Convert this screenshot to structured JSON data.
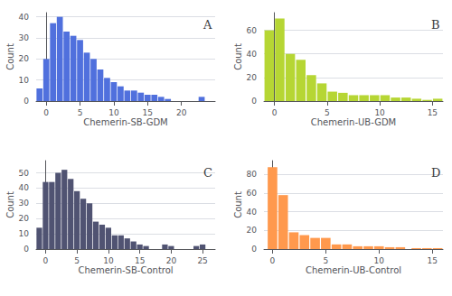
{
  "chart_data": [
    {
      "type": "bar",
      "title": "A",
      "xlabel": "Chemerin-SB-GDM",
      "ylabel": "Count",
      "x": [
        -1.0,
        0.0,
        1.0,
        2.0,
        3.0,
        4.0,
        5.0,
        6.0,
        7.0,
        8.0,
        9.0,
        10.0,
        11.0,
        12.0,
        13.0,
        14.0,
        15.0,
        16.0,
        17.0,
        18.0,
        23.0
      ],
      "values": [
        6,
        20,
        37,
        40,
        33,
        31,
        29,
        23,
        20,
        15,
        11,
        9,
        7,
        5,
        5,
        4,
        3,
        3,
        2,
        1,
        2
      ],
      "xlim": [
        -1.5,
        25
      ],
      "ylim": [
        0,
        42
      ],
      "xticks": [
        0,
        5,
        10,
        15,
        20
      ],
      "yticks": [
        0,
        10,
        20,
        30,
        40
      ],
      "grid": true
    },
    {
      "type": "bar",
      "title": "B",
      "xlabel": "Chemerin-UB-GDM",
      "ylabel": "Count",
      "x": [
        -0.5,
        0.5,
        1.5,
        2.5,
        3.5,
        4.5,
        5.5,
        6.5,
        7.5,
        8.5,
        9.5,
        10.5,
        11.5,
        12.5,
        13.5,
        14.5,
        15.5
      ],
      "values": [
        60,
        70,
        40,
        35,
        22,
        15,
        8,
        7,
        5,
        5,
        5,
        5,
        3,
        3,
        2,
        1,
        2
      ],
      "xlim": [
        -1.0,
        16
      ],
      "ylim": [
        0,
        75
      ],
      "xticks": [
        0,
        5,
        10,
        15
      ],
      "yticks": [
        0,
        20,
        40,
        60
      ],
      "grid": true
    },
    {
      "type": "bar",
      "title": "C",
      "xlabel": "Chemerin-SB-Control",
      "ylabel": "Count",
      "x": [
        -1.0,
        0.0,
        1.0,
        2.0,
        3.0,
        4.0,
        5.0,
        6.0,
        7.0,
        8.0,
        9.0,
        10.0,
        11.0,
        12.0,
        13.0,
        14.0,
        15.0,
        16.0,
        19.0,
        20.0,
        24.0,
        25.0
      ],
      "values": [
        14,
        44,
        44,
        50,
        52,
        46,
        38,
        33,
        30,
        18,
        16,
        14,
        9,
        9,
        7,
        5,
        3,
        2,
        3,
        2,
        2,
        3
      ],
      "xlim": [
        -1.5,
        27
      ],
      "ylim": [
        0,
        58
      ],
      "xticks": [
        0,
        5,
        10,
        15,
        20,
        25
      ],
      "yticks": [
        0,
        10,
        20,
        30,
        40,
        50
      ],
      "grid": true
    },
    {
      "type": "bar",
      "title": "D",
      "xlabel": "Chemerin-UB-Control",
      "ylabel": "Count",
      "x": [
        0.0,
        1.0,
        2.0,
        3.0,
        4.0,
        5.0,
        6.0,
        7.0,
        8.0,
        9.0,
        10.0,
        11.0,
        12.0,
        13.5,
        14.5,
        15.5
      ],
      "values": [
        88,
        58,
        18,
        15,
        12,
        12,
        5,
        5,
        3,
        3,
        3,
        2,
        2,
        1,
        1,
        1
      ],
      "xlim": [
        -0.8,
        16
      ],
      "ylim": [
        0,
        95
      ],
      "xticks": [
        0,
        5,
        10,
        15
      ],
      "yticks": [
        0,
        20,
        40,
        60,
        80
      ],
      "grid": true
    }
  ]
}
